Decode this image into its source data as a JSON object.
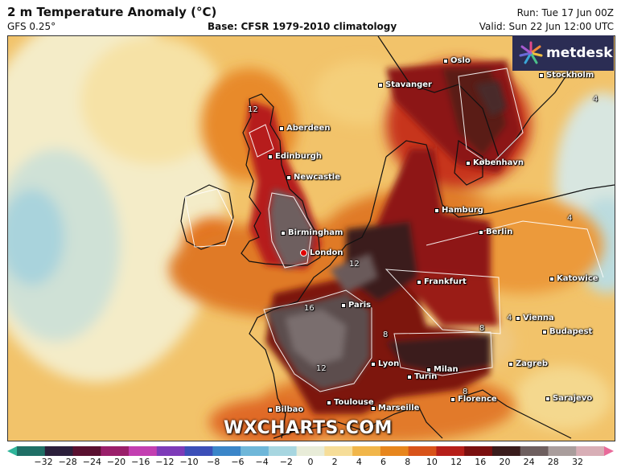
{
  "header": {
    "title": "2 m Temperature Anomaly (°C)",
    "model": "GFS 0.25°",
    "base": "Base: CFSR 1979-2010 climatology",
    "run": "Run: Tue 17 Jun 00Z",
    "valid": "Valid: Sun 22 Jun 12:00 UTC"
  },
  "brand": {
    "logo_text": "metdesk",
    "watermark": "WXCHARTS.COM"
  },
  "cities": [
    {
      "name": "Oslo"
    },
    {
      "name": "Stavanger"
    },
    {
      "name": "Stockholm"
    },
    {
      "name": "Aberdeen"
    },
    {
      "name": "Edinburgh"
    },
    {
      "name": "Newcastle"
    },
    {
      "name": "København"
    },
    {
      "name": "Hamburg"
    },
    {
      "name": "Berlin"
    },
    {
      "name": "Birmingham"
    },
    {
      "name": "London"
    },
    {
      "name": "Frankfurt"
    },
    {
      "name": "Katowice"
    },
    {
      "name": "Paris"
    },
    {
      "name": "Vienna"
    },
    {
      "name": "Budapest"
    },
    {
      "name": "Lyon"
    },
    {
      "name": "Milan"
    },
    {
      "name": "Turin"
    },
    {
      "name": "Zagreb"
    },
    {
      "name": "Toulouse"
    },
    {
      "name": "Marseille"
    },
    {
      "name": "Florence"
    },
    {
      "name": "Sarajevo"
    },
    {
      "name": "Bilbao"
    }
  ],
  "contour_labels": [
    "12",
    "12",
    "16",
    "12",
    "4",
    "8",
    "8",
    "4",
    "4",
    "8"
  ],
  "colorbar": {
    "ticks": [
      "−32",
      "−28",
      "−24",
      "−20",
      "−16",
      "−12",
      "−10",
      "−8",
      "−6",
      "−4",
      "−2",
      "0",
      "2",
      "4",
      "6",
      "8",
      "10",
      "12",
      "16",
      "20",
      "24",
      "28",
      "32"
    ],
    "colors": [
      "#2fb59a",
      "#1f6f66",
      "#2b1f3b",
      "#5a1030",
      "#9a1f6a",
      "#c33fb1",
      "#7d3bb8",
      "#3c4fb8",
      "#3b86c9",
      "#6fb7d9",
      "#a7d6e0",
      "#e8ecd8",
      "#f6dd98",
      "#f1b64a",
      "#e7861d",
      "#d8531a",
      "#b61f1a",
      "#7a1010",
      "#3a1c1c",
      "#6e5f5f",
      "#a99d9c",
      "#d8aeb6",
      "#e96a9a"
    ]
  }
}
